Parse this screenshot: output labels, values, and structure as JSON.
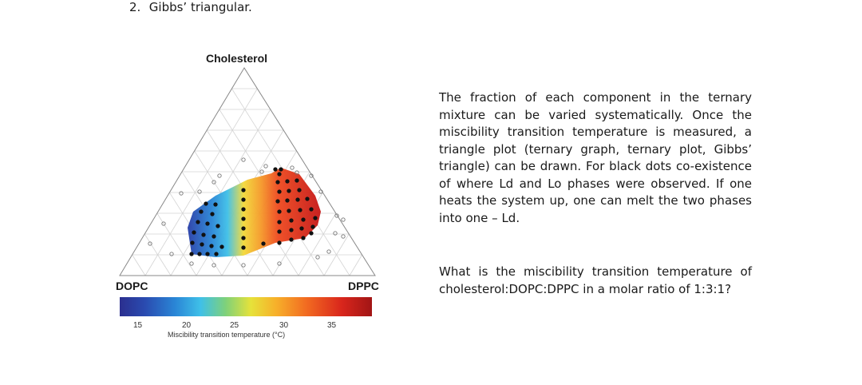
{
  "heading": {
    "number": "2.",
    "text": "Gibbs’ triangular."
  },
  "figure": {
    "vertices": {
      "top": "Cholesterol",
      "left": "DOPC",
      "right": "DPPC"
    },
    "colorbar": {
      "ticks": [
        "15",
        "20",
        "25",
        "30",
        "35"
      ],
      "label": "Miscibility transition temperature (°C)"
    }
  },
  "paragraphs": [
    "The fraction of each component in the ternary mixture can be varied systematically. Once the miscibility transition temperature is measured, a triangle plot (ternary graph, ternary plot, Gibbs’ triangle) can be drawn. For black dots co-existence of where Ld and Lo phases were observed. If one heats the system up, one can melt the two phases into one – Ld.",
    "What is the miscibility transition temperature of cholesterol:DOPC:DPPC in a molar ratio of 1:3:1?"
  ],
  "colors": {
    "cold": "#2b2f8f",
    "mid": "#e6e23a",
    "hot": "#a11515"
  }
}
